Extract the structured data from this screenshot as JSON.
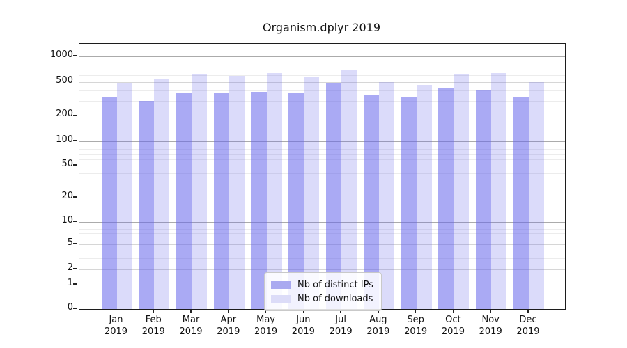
{
  "title": "Organism.dplyr 2019",
  "legend": {
    "items": [
      {
        "label": "Nb of distinct IPs",
        "color": "#a9a9f0"
      },
      {
        "label": "Nb of downloads",
        "color": "#dcdcf8"
      }
    ]
  },
  "chart_data": {
    "type": "bar",
    "title": "Organism.dplyr 2019",
    "categories": [
      "Jan",
      "Feb",
      "Mar",
      "Apr",
      "May",
      "Jun",
      "Jul",
      "Aug",
      "Sep",
      "Oct",
      "Nov",
      "Dec"
    ],
    "year_label": "2019",
    "series": [
      {
        "name": "Nb of distinct IPs",
        "color": "rgba(100,100,235,0.55)",
        "values": [
          330,
          300,
          375,
          370,
          380,
          370,
          490,
          345,
          330,
          425,
          405,
          335
        ]
      },
      {
        "name": "Nb of downloads",
        "color": "rgba(100,100,235,0.23)",
        "values": [
          490,
          535,
          615,
          590,
          640,
          565,
          700,
          495,
          460,
          615,
          640,
          495
        ]
      }
    ],
    "xlabel": "",
    "ylabel": "",
    "yaxis": {
      "scale": "log-with-zero",
      "ticks": [
        0,
        1,
        2,
        5,
        10,
        20,
        50,
        100,
        200,
        500,
        1000
      ],
      "range": [
        0,
        1300
      ]
    },
    "grid": true,
    "grid_colors": {
      "strong": "#ababab",
      "medium": "#d6d6d6",
      "minor": "#ececec"
    },
    "legend_position": "bottom-center"
  }
}
